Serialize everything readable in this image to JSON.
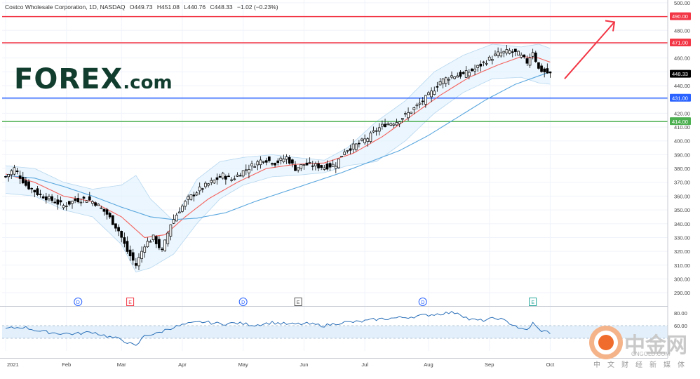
{
  "header": {
    "symbol": "Costco Wholesale Corporation, 1D, NASDAQ",
    "open": "O449.73",
    "high": "H451.08",
    "low": "L440.76",
    "close": "C448.33",
    "change": "−1.02 (−0.23%)"
  },
  "logo": {
    "main": "FOREX",
    "suffix": ".com"
  },
  "watermark": {
    "brand": "中金网",
    "domain": "CNGOLD.COM",
    "tagline": "中文财经新媒体"
  },
  "colors": {
    "up": "#26a69a",
    "candle": "#000000",
    "ema20": "#f5625d",
    "ema50": "#5aa7de",
    "band": "#e3f2fd",
    "res1": "#f23645",
    "sup1": "#2962ff",
    "sup2": "#4caf50",
    "arrow": "#f23645"
  },
  "chart_data": {
    "type": "candlestick",
    "ylim": [
      285,
      502
    ],
    "y_ticks": [
      "500.00",
      "490.00",
      "480.00",
      "470.00",
      "460.00",
      "450.00",
      "440.00",
      "430.00",
      "420.00",
      "410.00",
      "400.00",
      "390.00",
      "380.00",
      "370.00",
      "360.00",
      "350.00",
      "340.00",
      "330.00",
      "320.00",
      "310.00",
      "300.00",
      "290.00"
    ],
    "x_labels": [
      "2021",
      "Feb",
      "Mar",
      "Apr",
      "May",
      "Jun",
      "Jul",
      "Aug",
      "Sep",
      "Oct"
    ],
    "x_label_index": [
      0,
      21,
      40,
      61,
      82,
      103,
      124,
      146,
      167,
      188
    ],
    "levels": [
      {
        "value": 490.0,
        "label": "490.00",
        "color": "#f23645"
      },
      {
        "value": 471.0,
        "label": "471.00",
        "color": "#f23645"
      },
      {
        "value": 431.0,
        "label": "431.00",
        "color": "#2962ff"
      },
      {
        "value": 414.0,
        "label": "414.00",
        "color": "#4caf50"
      }
    ],
    "last_price": {
      "value": 448.33,
      "label": "448.33"
    },
    "events": [
      {
        "i": 25,
        "label": "D",
        "color": "#2962ff"
      },
      {
        "i": 43,
        "label": "E",
        "color": "#f23645"
      },
      {
        "i": 82,
        "label": "D",
        "color": "#2962ff"
      },
      {
        "i": 101,
        "label": "E",
        "color": "#555555"
      },
      {
        "i": 144,
        "label": "D",
        "color": "#2962ff"
      },
      {
        "i": 182,
        "label": "E",
        "color": "#26a69a"
      }
    ],
    "close_anchors": [
      [
        0,
        374
      ],
      [
        3,
        380
      ],
      [
        7,
        368
      ],
      [
        11,
        362
      ],
      [
        15,
        358
      ],
      [
        20,
        353
      ],
      [
        24,
        357
      ],
      [
        28,
        358
      ],
      [
        31,
        355
      ],
      [
        35,
        347
      ],
      [
        39,
        335
      ],
      [
        42,
        320
      ],
      [
        45,
        310
      ],
      [
        48,
        325
      ],
      [
        51,
        330
      ],
      [
        54,
        320
      ],
      [
        57,
        340
      ],
      [
        60,
        350
      ],
      [
        63,
        358
      ],
      [
        67,
        365
      ],
      [
        71,
        370
      ],
      [
        75,
        375
      ],
      [
        78,
        372
      ],
      [
        82,
        378
      ],
      [
        85,
        382
      ],
      [
        89,
        387
      ],
      [
        93,
        384
      ],
      [
        97,
        388
      ],
      [
        100,
        380
      ],
      [
        103,
        383
      ],
      [
        107,
        382
      ],
      [
        110,
        381
      ],
      [
        114,
        383
      ],
      [
        117,
        393
      ],
      [
        121,
        397
      ],
      [
        125,
        402
      ],
      [
        128,
        408
      ],
      [
        131,
        412
      ],
      [
        135,
        414
      ],
      [
        139,
        420
      ],
      [
        143,
        427
      ],
      [
        147,
        435
      ],
      [
        150,
        443
      ],
      [
        154,
        447
      ],
      [
        158,
        448
      ],
      [
        162,
        452
      ],
      [
        166,
        458
      ],
      [
        170,
        463
      ],
      [
        174,
        465
      ],
      [
        177,
        463
      ],
      [
        180,
        457
      ],
      [
        182,
        465
      ],
      [
        184,
        452
      ],
      [
        186,
        450
      ],
      [
        188,
        448.33
      ]
    ],
    "ema20_anchors": [
      [
        0,
        376
      ],
      [
        10,
        370
      ],
      [
        20,
        360
      ],
      [
        30,
        356
      ],
      [
        40,
        345
      ],
      [
        48,
        330
      ],
      [
        55,
        332
      ],
      [
        62,
        345
      ],
      [
        70,
        358
      ],
      [
        80,
        370
      ],
      [
        90,
        380
      ],
      [
        100,
        383
      ],
      [
        110,
        384
      ],
      [
        120,
        391
      ],
      [
        130,
        403
      ],
      [
        140,
        418
      ],
      [
        150,
        433
      ],
      [
        160,
        446
      ],
      [
        170,
        455
      ],
      [
        178,
        461
      ],
      [
        184,
        460
      ],
      [
        188,
        457
      ]
    ],
    "ema50_anchors": [
      [
        0,
        375
      ],
      [
        10,
        373
      ],
      [
        20,
        367
      ],
      [
        30,
        360
      ],
      [
        40,
        352
      ],
      [
        50,
        345
      ],
      [
        58,
        343
      ],
      [
        66,
        344
      ],
      [
        76,
        348
      ],
      [
        86,
        356
      ],
      [
        96,
        363
      ],
      [
        106,
        370
      ],
      [
        116,
        377
      ],
      [
        126,
        385
      ],
      [
        136,
        393
      ],
      [
        146,
        404
      ],
      [
        156,
        417
      ],
      [
        166,
        430
      ],
      [
        176,
        441
      ],
      [
        184,
        447
      ],
      [
        188,
        450
      ]
    ],
    "bb_upper_anchors": [
      [
        0,
        382
      ],
      [
        10,
        380
      ],
      [
        20,
        370
      ],
      [
        30,
        365
      ],
      [
        40,
        368
      ],
      [
        45,
        375
      ],
      [
        50,
        358
      ],
      [
        58,
        342
      ],
      [
        66,
        372
      ],
      [
        74,
        385
      ],
      [
        82,
        388
      ],
      [
        92,
        390
      ],
      [
        100,
        388
      ],
      [
        110,
        386
      ],
      [
        118,
        395
      ],
      [
        128,
        414
      ],
      [
        138,
        429
      ],
      [
        148,
        450
      ],
      [
        158,
        462
      ],
      [
        168,
        470
      ],
      [
        178,
        468
      ],
      [
        184,
        470
      ],
      [
        188,
        467
      ]
    ],
    "bb_lower_anchors": [
      [
        0,
        362
      ],
      [
        10,
        360
      ],
      [
        20,
        350
      ],
      [
        30,
        345
      ],
      [
        40,
        325
      ],
      [
        45,
        305
      ],
      [
        50,
        308
      ],
      [
        58,
        318
      ],
      [
        66,
        340
      ],
      [
        74,
        358
      ],
      [
        82,
        368
      ],
      [
        92,
        374
      ],
      [
        100,
        375
      ],
      [
        110,
        377
      ],
      [
        118,
        382
      ],
      [
        128,
        385
      ],
      [
        138,
        400
      ],
      [
        148,
        420
      ],
      [
        158,
        435
      ],
      [
        168,
        445
      ],
      [
        178,
        446
      ],
      [
        184,
        442
      ],
      [
        188,
        441
      ]
    ],
    "rsi_ylim": [
      20,
      90
    ],
    "rsi_ticks": [
      "80.00",
      "60.00"
    ],
    "rsi_band": [
      40,
      60
    ],
    "rsi_anchors": [
      [
        0,
        55
      ],
      [
        6,
        58
      ],
      [
        12,
        51
      ],
      [
        18,
        48
      ],
      [
        24,
        47
      ],
      [
        30,
        50
      ],
      [
        36,
        42
      ],
      [
        40,
        38
      ],
      [
        45,
        27
      ],
      [
        48,
        45
      ],
      [
        52,
        47
      ],
      [
        56,
        55
      ],
      [
        62,
        62
      ],
      [
        68,
        66
      ],
      [
        74,
        63
      ],
      [
        80,
        64
      ],
      [
        86,
        61
      ],
      [
        92,
        65
      ],
      [
        98,
        62
      ],
      [
        104,
        63
      ],
      [
        110,
        60
      ],
      [
        116,
        65
      ],
      [
        122,
        66
      ],
      [
        128,
        70
      ],
      [
        134,
        72
      ],
      [
        140,
        74
      ],
      [
        146,
        77
      ],
      [
        152,
        80
      ],
      [
        156,
        81
      ],
      [
        160,
        70
      ],
      [
        164,
        68
      ],
      [
        170,
        72
      ],
      [
        174,
        64
      ],
      [
        176,
        60
      ],
      [
        178,
        54
      ],
      [
        180,
        53
      ],
      [
        182,
        64
      ],
      [
        184,
        54
      ],
      [
        186,
        51
      ],
      [
        188,
        49
      ]
    ]
  }
}
